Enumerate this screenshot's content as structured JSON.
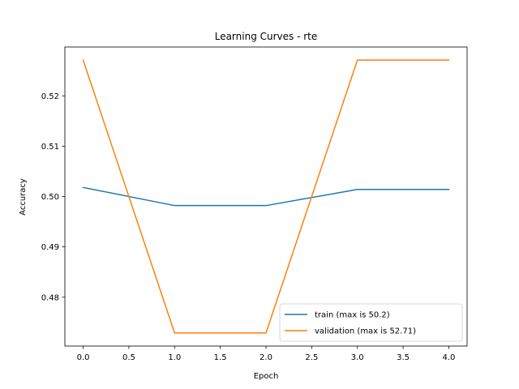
{
  "chart_data": {
    "type": "line",
    "title": "Learning Curves - rte",
    "xlabel": "Epoch",
    "ylabel": "Accuracy",
    "x": [
      0,
      1,
      2,
      3,
      4
    ],
    "xlim": [
      -0.2,
      4.2
    ],
    "ylim": [
      0.4703,
      0.5297
    ],
    "xticks": [
      0.0,
      0.5,
      1.0,
      1.5,
      2.0,
      2.5,
      3.0,
      3.5,
      4.0
    ],
    "xtick_labels": [
      "0.0",
      "0.5",
      "1.0",
      "1.5",
      "2.0",
      "2.5",
      "3.0",
      "3.5",
      "4.0"
    ],
    "yticks": [
      0.48,
      0.49,
      0.5,
      0.51,
      0.52
    ],
    "ytick_labels": [
      "0.48",
      "0.49",
      "0.50",
      "0.51",
      "0.52"
    ],
    "grid": false,
    "legend_position": "bottom-right",
    "series": [
      {
        "name": "train (max is 50.2)",
        "color": "#1f77b4",
        "values": [
          0.5018,
          0.4982,
          0.4982,
          0.5014,
          0.5014
        ]
      },
      {
        "name": "validation (max is 52.71)",
        "color": "#ff7f0e",
        "values": [
          0.5271,
          0.4729,
          0.4729,
          0.5271,
          0.5271
        ]
      }
    ]
  }
}
